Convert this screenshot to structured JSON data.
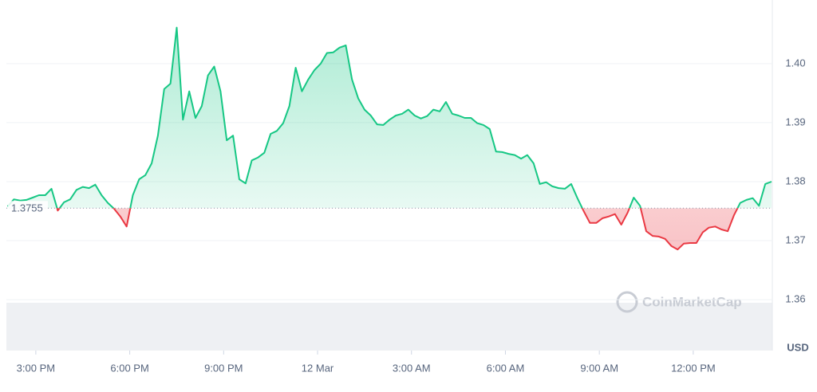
{
  "chart_data": {
    "type": "line",
    "x": [
      -9.9,
      -9.7,
      -9.5,
      -9.3,
      -9.1,
      -8.9,
      -8.7,
      -8.5,
      -8.3,
      -8.1,
      -7.9,
      -7.7,
      -7.5,
      -7.3,
      -7.1,
      -6.9,
      -6.7,
      -6.5,
      -6.3,
      -6.1,
      -5.9,
      -5.7,
      -5.5,
      -5.3,
      -5.1,
      -4.9,
      -4.7,
      -4.5,
      -4.3,
      -4.1,
      -3.9,
      -3.7,
      -3.5,
      -3.3,
      -3.1,
      -2.9,
      -2.7,
      -2.5,
      -2.3,
      -2.1,
      -1.9,
      -1.7,
      -1.5,
      -1.3,
      -1.1,
      -0.9,
      -0.7,
      -0.5,
      -0.3,
      -0.1,
      0.1,
      0.3,
      0.5,
      0.7,
      0.9,
      1.1,
      1.3,
      1.5,
      1.7,
      1.9,
      2.1,
      2.3,
      2.5,
      2.7,
      2.9,
      3.1,
      3.3,
      3.5,
      3.7,
      3.9,
      4.1,
      4.3,
      4.5,
      4.7,
      4.9,
      5.1,
      5.3,
      5.5,
      5.7,
      5.9,
      6.1,
      6.3,
      6.5,
      6.7,
      6.9,
      7.1,
      7.3,
      7.5,
      7.7,
      7.9,
      8.1,
      8.3,
      8.5,
      8.7,
      8.9,
      9.1,
      9.3,
      9.5,
      9.7,
      9.9,
      10.1,
      10.3,
      10.5,
      10.7,
      10.9,
      11.1,
      11.3,
      11.5,
      11.7,
      11.9,
      12.1,
      12.3,
      12.5,
      12.7,
      12.9,
      13.1,
      13.3,
      13.5,
      13.7,
      13.9,
      14.1,
      14.3,
      14.5
    ],
    "values": [
      1.3758,
      1.377,
      1.3768,
      1.3769,
      1.3773,
      1.3777,
      1.3777,
      1.3788,
      1.3751,
      1.3765,
      1.377,
      1.3786,
      1.3791,
      1.3789,
      1.3795,
      1.3777,
      1.3764,
      1.3754,
      1.3741,
      1.3724,
      1.3777,
      1.3804,
      1.3811,
      1.3831,
      1.3878,
      1.3957,
      1.3966,
      1.4061,
      1.3905,
      1.3953,
      1.3908,
      1.3928,
      1.398,
      1.3995,
      1.3953,
      1.387,
      1.3878,
      1.3804,
      1.3797,
      1.3836,
      1.3841,
      1.3849,
      1.3881,
      1.3886,
      1.3899,
      1.3928,
      1.3993,
      1.3953,
      1.3973,
      1.3989,
      1.4,
      1.4018,
      1.4019,
      1.4027,
      1.4031,
      1.3973,
      1.3941,
      1.3922,
      1.3912,
      1.3897,
      1.3896,
      1.3905,
      1.3912,
      1.3915,
      1.3922,
      1.3912,
      1.3907,
      1.3911,
      1.3922,
      1.3919,
      1.3935,
      1.3915,
      1.3912,
      1.3908,
      1.3908,
      1.3899,
      1.3896,
      1.3889,
      1.3851,
      1.385,
      1.3847,
      1.3845,
      1.3839,
      1.3845,
      1.3831,
      1.3796,
      1.3799,
      1.3792,
      1.3789,
      1.3788,
      1.3796,
      1.3772,
      1.375,
      1.373,
      1.373,
      1.3738,
      1.3741,
      1.3745,
      1.3727,
      1.3747,
      1.3773,
      1.3759,
      1.3716,
      1.3708,
      1.3707,
      1.3703,
      1.3691,
      1.3685,
      1.3695,
      1.3696,
      1.3696,
      1.3714,
      1.3722,
      1.3724,
      1.3719,
      1.3716,
      1.3743,
      1.3764,
      1.3769,
      1.3772,
      1.3759,
      1.3796,
      1.38
    ],
    "baseline": 1.3755,
    "color_up": "#16c784",
    "color_down": "#ea3943",
    "xlim": [
      -9.94,
      14.5
    ],
    "xticks": [
      {
        "value": -9,
        "label": "3:00 PM"
      },
      {
        "value": -6,
        "label": "6:00 PM"
      },
      {
        "value": -3,
        "label": "9:00 PM"
      },
      {
        "value": 0,
        "label": "12 Mar"
      },
      {
        "value": 3,
        "label": "3:00 AM"
      },
      {
        "value": 6,
        "label": "6:00 AM"
      },
      {
        "value": 9,
        "label": "9:00 AM"
      },
      {
        "value": 12,
        "label": "12:00 PM"
      }
    ],
    "ylim": [
      1.3507,
      1.4101
    ],
    "yticks": [
      1.36,
      1.37,
      1.38,
      1.39,
      {
        "value": 1.4,
        "label": "1.40"
      }
    ],
    "grid": true,
    "currency_label": "USD",
    "watermark": "CoinMarketCap"
  }
}
